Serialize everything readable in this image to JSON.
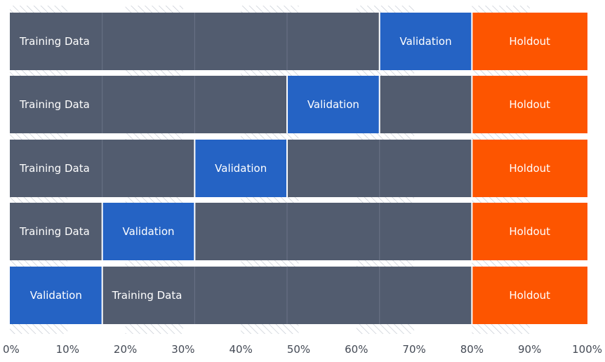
{
  "chart_data": {
    "type": "diagram",
    "title": "",
    "axis": {
      "ticks": [
        0,
        10,
        20,
        30,
        40,
        50,
        60,
        70,
        80,
        90,
        100
      ],
      "tick_labels": [
        "0%",
        "10%",
        "20%",
        "30%",
        "40%",
        "50%",
        "60%",
        "70%",
        "80%",
        "90%",
        "100%"
      ]
    },
    "colors": {
      "training": "#525c6f",
      "validation": "#2563c4",
      "holdout": "#fd5500",
      "hatch": "#c6cbd3"
    },
    "rows": [
      {
        "segments": [
          {
            "start": 0,
            "end": 64,
            "kind": "training",
            "label": "Training Data"
          },
          {
            "start": 64,
            "end": 80,
            "kind": "validation",
            "label": "Validation"
          },
          {
            "start": 80,
            "end": 100,
            "kind": "holdout",
            "label": "Holdout"
          }
        ]
      },
      {
        "segments": [
          {
            "start": 0,
            "end": 48,
            "kind": "training",
            "label": "Training Data"
          },
          {
            "start": 48,
            "end": 64,
            "kind": "validation",
            "label": "Validation"
          },
          {
            "start": 64,
            "end": 80,
            "kind": "training",
            "label": ""
          },
          {
            "start": 80,
            "end": 100,
            "kind": "holdout",
            "label": "Holdout"
          }
        ]
      },
      {
        "segments": [
          {
            "start": 0,
            "end": 32,
            "kind": "training",
            "label": "Training Data"
          },
          {
            "start": 32,
            "end": 48,
            "kind": "validation",
            "label": "Validation"
          },
          {
            "start": 48,
            "end": 80,
            "kind": "training",
            "label": ""
          },
          {
            "start": 80,
            "end": 100,
            "kind": "holdout",
            "label": "Holdout"
          }
        ]
      },
      {
        "segments": [
          {
            "start": 0,
            "end": 16,
            "kind": "training",
            "label": "Training Data"
          },
          {
            "start": 16,
            "end": 32,
            "kind": "validation",
            "label": "Validation"
          },
          {
            "start": 32,
            "end": 80,
            "kind": "training",
            "label": ""
          },
          {
            "start": 80,
            "end": 100,
            "kind": "holdout",
            "label": "Holdout"
          }
        ]
      },
      {
        "segments": [
          {
            "start": 0,
            "end": 16,
            "kind": "validation",
            "label": "Validation"
          },
          {
            "start": 16,
            "end": 80,
            "kind": "training",
            "label": "Training Data"
          },
          {
            "start": 80,
            "end": 100,
            "kind": "holdout",
            "label": "Holdout"
          }
        ]
      }
    ],
    "fold_boundaries": [
      16,
      32,
      48,
      64
    ]
  }
}
